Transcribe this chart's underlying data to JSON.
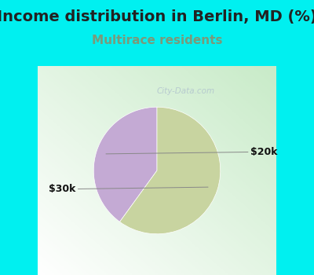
{
  "title": "Income distribution in Berlin, MD (%)",
  "subtitle": "Multirace residents",
  "title_fontsize": 14,
  "subtitle_fontsize": 11,
  "title_color": "#222222",
  "subtitle_color": "#7a9a7a",
  "background_color": "#00f0f0",
  "slices": [
    {
      "label": "$20k",
      "value": 40,
      "color": "#c4aad4"
    },
    {
      "label": "$30k",
      "value": 60,
      "color": "#c8d4a0"
    }
  ],
  "label_fontsize": 9,
  "label_color": "#111111",
  "startangle": 90,
  "watermark": "City-Data.com"
}
